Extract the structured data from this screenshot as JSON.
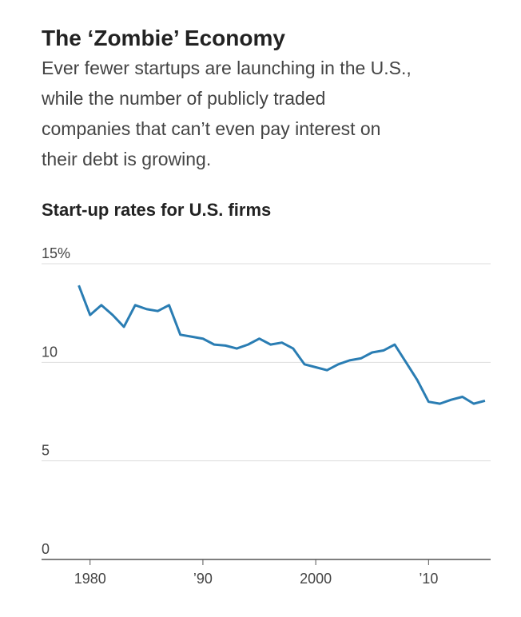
{
  "chart_data": {
    "type": "line",
    "title": "The ‘Zombie’ Economy",
    "subtitle": [
      "Ever fewer startups are launching in the U.S.,",
      "while the number of publicly traded",
      "companies that can’t even pay interest on",
      "their debt is growing."
    ],
    "chart_title": "Start-up rates for U.S. firms",
    "x": [
      1979,
      1980,
      1981,
      1982,
      1983,
      1984,
      1985,
      1986,
      1987,
      1988,
      1989,
      1990,
      1991,
      1992,
      1993,
      1994,
      1995,
      1996,
      1997,
      1998,
      1999,
      2000,
      2001,
      2002,
      2003,
      2004,
      2005,
      2006,
      2007,
      2008,
      2009,
      2010,
      2011,
      2012,
      2013,
      2014,
      2015
    ],
    "series": [
      {
        "name": "Start-up rate",
        "color": "#2a7db3",
        "values": [
          13.9,
          12.4,
          12.9,
          12.4,
          11.8,
          12.9,
          12.7,
          12.6,
          12.9,
          11.4,
          11.3,
          11.2,
          10.9,
          10.85,
          10.7,
          10.9,
          11.2,
          10.9,
          11.0,
          10.7,
          9.9,
          9.75,
          9.6,
          9.9,
          10.1,
          10.2,
          10.5,
          10.6,
          10.9,
          10.0,
          9.1,
          8.0,
          7.9,
          8.1,
          8.25,
          7.9,
          8.05
        ]
      }
    ],
    "xlim": [
      1975.7,
      2015.5
    ],
    "xticks": [
      1980,
      {
        "value": 1990,
        "label": "’90"
      },
      2000,
      {
        "value": 2010,
        "label": "’10"
      }
    ],
    "ylim": [
      0,
      15
    ],
    "yticks": [
      0,
      5,
      10,
      {
        "value": 15,
        "label": "15%"
      }
    ],
    "grid": true
  }
}
